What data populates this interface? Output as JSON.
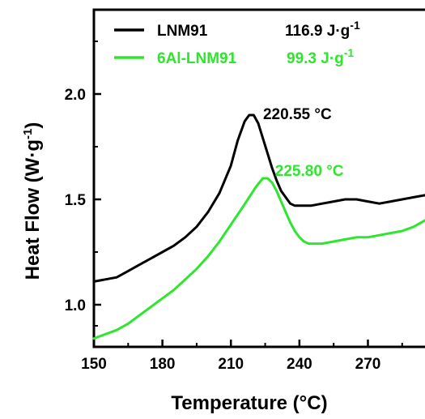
{
  "chart_data": {
    "type": "line",
    "xlabel": "Temperature (°C)",
    "ylabel_main": "Heat Flow (W·g",
    "ylabel_sup": "-1",
    "ylabel_close": ")",
    "xlim": [
      150,
      295
    ],
    "ylim": [
      0.8,
      2.4
    ],
    "xticks": [
      150,
      180,
      210,
      240,
      270
    ],
    "yticks": [
      1.0,
      1.5,
      2.0
    ],
    "ytick_labels": [
      "1.0",
      "1.5",
      "2.0"
    ],
    "grid": false,
    "legend_position": "top-left",
    "series": [
      {
        "name": "LNM91",
        "enthalpy_main": "116.9 J·g",
        "enthalpy_sup": "-1",
        "color": "#000000",
        "x": [
          150,
          155,
          160,
          165,
          170,
          175,
          180,
          185,
          190,
          195,
          200,
          205,
          210,
          213,
          216,
          218,
          220,
          222,
          224,
          226,
          228,
          230,
          232,
          234,
          236,
          238,
          240,
          245,
          250,
          255,
          260,
          265,
          270,
          275,
          280,
          285,
          290,
          295
        ],
        "y": [
          1.11,
          1.12,
          1.13,
          1.16,
          1.19,
          1.22,
          1.25,
          1.28,
          1.32,
          1.37,
          1.44,
          1.53,
          1.66,
          1.78,
          1.87,
          1.9,
          1.9,
          1.86,
          1.79,
          1.72,
          1.65,
          1.59,
          1.54,
          1.51,
          1.48,
          1.47,
          1.47,
          1.47,
          1.48,
          1.49,
          1.5,
          1.5,
          1.49,
          1.48,
          1.49,
          1.5,
          1.51,
          1.52
        ]
      },
      {
        "name": "6Al-LNM91",
        "enthalpy_main": "99.3 J·g",
        "enthalpy_sup": "-1",
        "color": "#2ee62e",
        "x": [
          150,
          155,
          160,
          165,
          170,
          175,
          180,
          185,
          190,
          195,
          200,
          205,
          210,
          215,
          218,
          221,
          224,
          226,
          228,
          230,
          232,
          234,
          236,
          238,
          240,
          242,
          244,
          246,
          248,
          250,
          255,
          260,
          265,
          270,
          275,
          280,
          285,
          290,
          295
        ],
        "y": [
          0.84,
          0.86,
          0.88,
          0.91,
          0.95,
          0.99,
          1.03,
          1.07,
          1.12,
          1.17,
          1.23,
          1.3,
          1.38,
          1.46,
          1.51,
          1.56,
          1.6,
          1.6,
          1.58,
          1.54,
          1.49,
          1.44,
          1.39,
          1.35,
          1.32,
          1.3,
          1.29,
          1.29,
          1.29,
          1.29,
          1.3,
          1.31,
          1.32,
          1.32,
          1.33,
          1.34,
          1.35,
          1.37,
          1.4
        ]
      }
    ],
    "annotations": [
      {
        "series": 0,
        "text": "220.55 °C",
        "x": 220.55,
        "y": 1.9,
        "color": "#000000"
      },
      {
        "series": 1,
        "text": "225.80 °C",
        "x": 225.8,
        "y": 1.6,
        "color": "#2ee62e"
      }
    ]
  }
}
